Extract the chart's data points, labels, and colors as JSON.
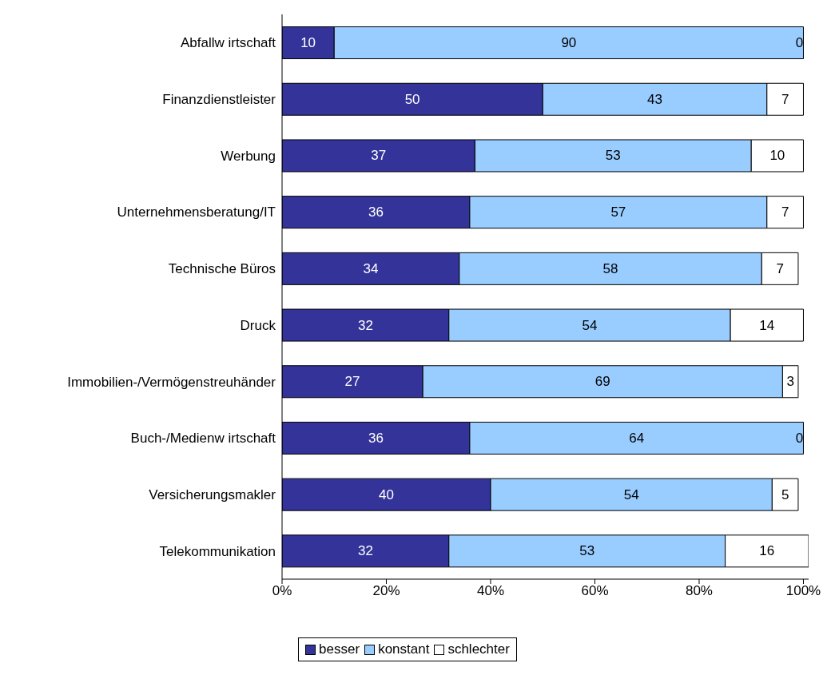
{
  "chart_data": {
    "type": "bar",
    "orientation": "horizontal",
    "stacked": true,
    "data_labels": true,
    "legend": "bottom",
    "categories": [
      "Abfallw irtschaft",
      "Finanzdienstleister",
      "Werbung",
      "Unternehmensberatung/IT",
      "Technische Büros",
      "Druck",
      "Immobilien-/Vermögenstreuhänder",
      "Buch-/Medienw irtschaft",
      "Versicherungsmakler",
      "Telekommunikation"
    ],
    "series": [
      {
        "name": "besser",
        "color": "#333399",
        "values": [
          10,
          50,
          37,
          36,
          34,
          32,
          27,
          36,
          40,
          32
        ]
      },
      {
        "name": "konstant",
        "color": "#99ccff",
        "values": [
          90,
          43,
          53,
          57,
          58,
          54,
          69,
          64,
          54,
          53
        ]
      },
      {
        "name": "schlechter",
        "color": "#ffffff",
        "values": [
          0,
          7,
          10,
          7,
          7,
          14,
          3,
          0,
          5,
          16
        ]
      }
    ],
    "xlim": [
      0,
      101
    ],
    "xticks": [
      {
        "value": 0,
        "label": "0%"
      },
      {
        "value": 20,
        "label": "20%"
      },
      {
        "value": 40,
        "label": "40%"
      },
      {
        "value": 60,
        "label": "60%"
      },
      {
        "value": 80,
        "label": "80%"
      },
      {
        "value": 100,
        "label": "100%"
      }
    ]
  }
}
